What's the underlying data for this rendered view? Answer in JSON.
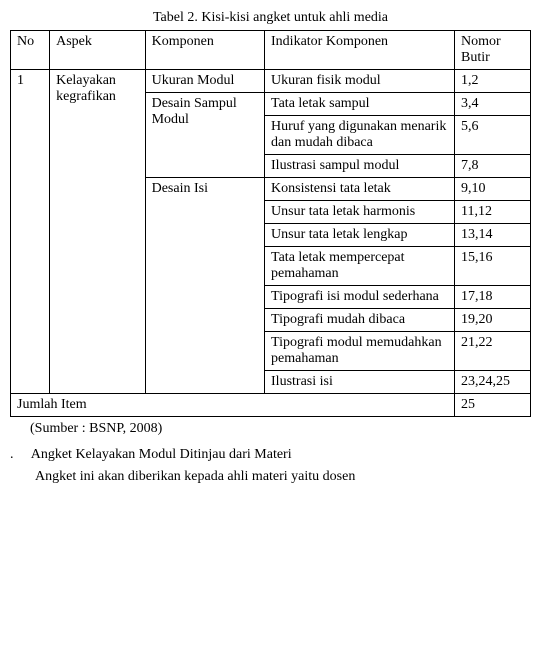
{
  "caption": "Tabel 2. Kisi-kisi angket untuk ahli media",
  "headers": {
    "no": "No",
    "aspek": "Aspek",
    "komponen": "Komponen",
    "indikator": "Indikator Komponen",
    "butir": "Nomor Butir"
  },
  "row_no": "1",
  "row_aspek": "Kelayakan kegrafikan",
  "komponen1": "Ukuran Modul",
  "komponen2": "Desain Sampul Modul",
  "komponen3": "Desain Isi",
  "rows": [
    {
      "indikator": "Ukuran fisik modul",
      "butir": "1,2"
    },
    {
      "indikator": "Tata letak sampul",
      "butir": "3,4"
    },
    {
      "indikator": "Huruf yang digunakan menarik dan mudah dibaca",
      "butir": "5,6"
    },
    {
      "indikator": "Ilustrasi sampul modul",
      "butir": "7,8"
    },
    {
      "indikator": "Konsistensi tata letak",
      "butir": "9,10"
    },
    {
      "indikator": "Unsur tata letak harmonis",
      "butir": "11,12"
    },
    {
      "indikator": "Unsur tata letak lengkap",
      "butir": "13,14"
    },
    {
      "indikator": "Tata letak mempercepat pemahaman",
      "butir": "15,16"
    },
    {
      "indikator": "Tipografi isi modul sederhana",
      "butir": "17,18"
    },
    {
      "indikator": "Tipografi mudah dibaca",
      "butir": "19,20"
    },
    {
      "indikator": "Tipografi modul memudahkan pemahaman",
      "butir": "21,22"
    },
    {
      "indikator": "Ilustrasi isi",
      "butir": "23,24,25"
    }
  ],
  "footer_label": "Jumlah Item",
  "footer_value": "25",
  "source": "(Sumber : BSNP, 2008)",
  "list_marker": ".",
  "list_text": "Angket Kelayakan Modul Ditinjau dari Materi",
  "sub_text_partial": "Angket ini akan diberikan kepada ahli materi yaitu dosen"
}
